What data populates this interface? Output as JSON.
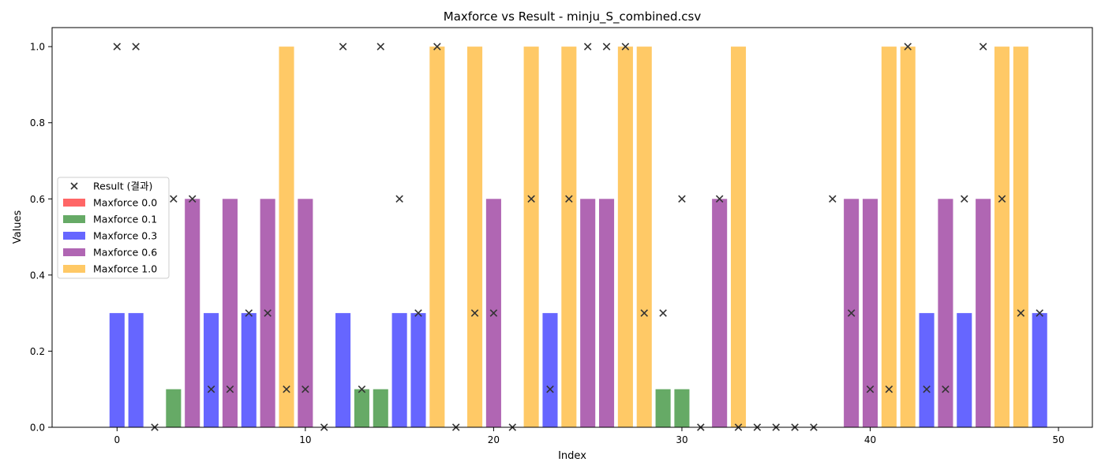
{
  "chart_data": {
    "type": "bar",
    "title": "Maxforce vs Result - minju_S_combined.csv",
    "xlabel": "Index",
    "ylabel": "Values",
    "xlim": [
      -3.45,
      51.8
    ],
    "ylim": [
      0.0,
      1.05
    ],
    "x_ticks": [
      0,
      10,
      20,
      30,
      40,
      50
    ],
    "x_tick_labels": [
      "0",
      "10",
      "20",
      "30",
      "40",
      "50"
    ],
    "y_ticks": [
      0.0,
      0.2,
      0.4,
      0.6,
      0.8,
      1.0
    ],
    "y_tick_labels": [
      "0.0",
      "0.2",
      "0.4",
      "0.6",
      "0.8",
      "1.0"
    ],
    "grid": false,
    "legend_position": "center-left",
    "index": [
      0,
      1,
      2,
      3,
      4,
      5,
      6,
      7,
      8,
      9,
      10,
      11,
      12,
      13,
      14,
      15,
      16,
      17,
      18,
      19,
      20,
      21,
      22,
      23,
      24,
      25,
      26,
      27,
      28,
      29,
      30,
      31,
      32,
      33,
      34,
      35,
      36,
      37,
      38,
      39,
      40,
      41,
      42,
      43,
      44,
      45,
      46,
      47,
      48,
      49
    ],
    "maxforce": [
      0.3,
      0.3,
      0.0,
      0.1,
      0.6,
      0.3,
      0.6,
      0.3,
      0.6,
      1.0,
      0.6,
      0.0,
      0.3,
      0.1,
      0.1,
      0.3,
      0.3,
      1.0,
      0.0,
      1.0,
      0.6,
      0.0,
      1.0,
      0.3,
      1.0,
      0.6,
      0.6,
      1.0,
      1.0,
      0.1,
      0.1,
      0.0,
      0.6,
      1.0,
      0.0,
      0.0,
      0.0,
      0.0,
      0.0,
      0.6,
      0.6,
      1.0,
      1.0,
      0.3,
      0.6,
      0.3,
      0.6,
      1.0,
      1.0,
      0.3
    ],
    "result": [
      1.0,
      1.0,
      0.0,
      0.6,
      0.6,
      0.1,
      0.1,
      0.3,
      0.3,
      0.1,
      0.1,
      0.0,
      1.0,
      0.1,
      1.0,
      0.6,
      0.3,
      1.0,
      0.0,
      0.3,
      0.3,
      0.0,
      0.6,
      0.1,
      0.6,
      1.0,
      1.0,
      1.0,
      0.3,
      0.3,
      0.6,
      0.0,
      0.6,
      0.0,
      0.0,
      0.0,
      0.0,
      0.0,
      0.6,
      0.3,
      0.1,
      0.1,
      1.0,
      0.1,
      0.1,
      0.6,
      1.0,
      0.6,
      0.3,
      0.3
    ],
    "series": [
      {
        "name": "Result (결과)",
        "kind": "scatter",
        "marker": "x",
        "color": "#333333"
      },
      {
        "name": "Maxforce 0.0",
        "kind": "bar",
        "level": 0.0,
        "color": "#ff6666"
      },
      {
        "name": "Maxforce 0.1",
        "kind": "bar",
        "level": 0.1,
        "color": "#66aa66"
      },
      {
        "name": "Maxforce 0.3",
        "kind": "bar",
        "level": 0.3,
        "color": "#6666ff"
      },
      {
        "name": "Maxforce 0.6",
        "kind": "bar",
        "level": 0.6,
        "color": "#b066b3"
      },
      {
        "name": "Maxforce 1.0",
        "kind": "bar",
        "level": 1.0,
        "color": "#ffc966"
      }
    ]
  }
}
